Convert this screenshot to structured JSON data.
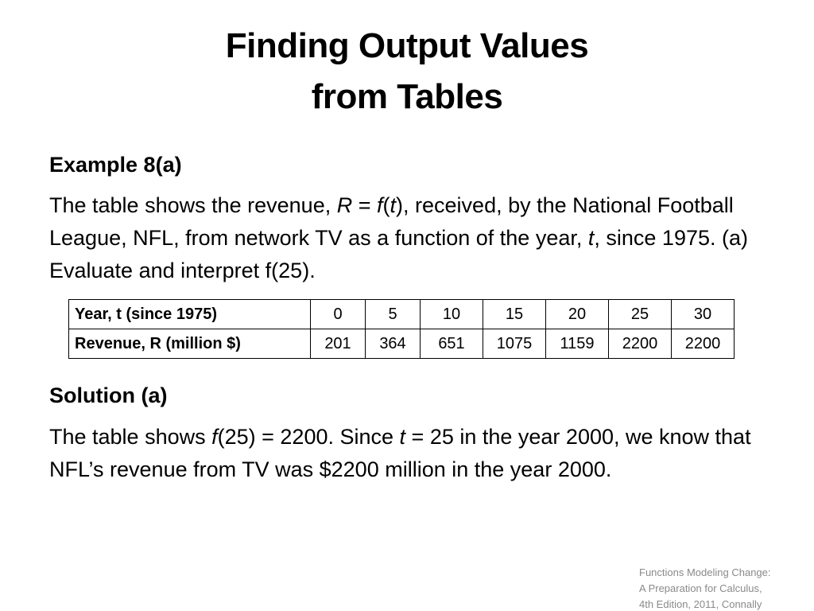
{
  "slide": {
    "title_line1": "Finding Output Values",
    "title_line2": "from Tables",
    "example": {
      "heading": "Example 8(a)",
      "text_1": "The table shows the revenue, ",
      "var_R": "R",
      "text_eq": " = ",
      "var_f": "f",
      "text_open": "(",
      "var_t": "t",
      "text_2": "), received, by the National Football League, NFL, from network TV as a function of the year, ",
      "var_t2": "t",
      "text_3": ", since 1975. (a) Evaluate and interpret f(25)."
    },
    "table": {
      "row1_label": "Year, t (since 1975)",
      "row2_label": "Revenue, R (million $)",
      "years": [
        "0",
        "5",
        "10",
        "15",
        "20",
        "25",
        "30"
      ],
      "revenues": [
        "201",
        "364",
        "651",
        "1075",
        "1159",
        "2200",
        "2200"
      ]
    },
    "solution": {
      "heading": "Solution (a)",
      "text_1": "The table shows ",
      "var_f": "f",
      "text_2": "(25) = 2200. Since ",
      "var_t": "t",
      "text_3": " = 25 in the year 2000, we know that NFL’s revenue from TV was $2200 million in the year 2000."
    },
    "credit": {
      "line1": "Functions Modeling Change:",
      "line2": "A Preparation for Calculus,",
      "line3": "4th Edition, 2011, Connally"
    }
  }
}
